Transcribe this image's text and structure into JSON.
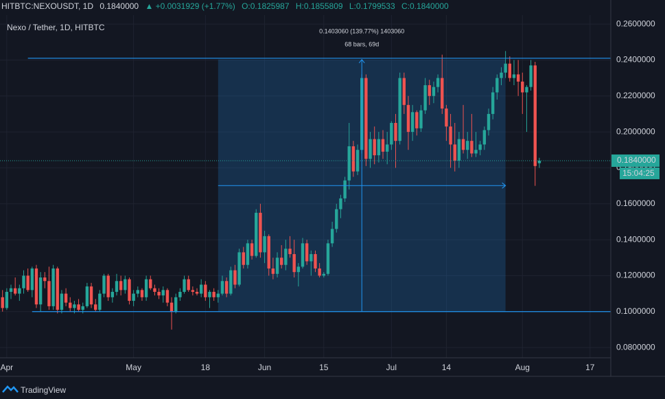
{
  "header": {
    "symbol": "HITBTC:NEXOUSDT, 1D",
    "last": "0.1840000",
    "change": "▲ +0.0031929 (+1.77%)",
    "o": "O:0.1825987",
    "h": "H:0.1855809",
    "l": "L:0.1799533",
    "c": "C:0.1840000"
  },
  "chart_data": {
    "type": "candlestick",
    "title": "Nexo / Tether, 1D, HITBTC",
    "up_color": "#26a69a",
    "down_color": "#ef5350",
    "xlim": [
      -1.6,
      142.9
    ],
    "ylim": [
      0.0743,
      0.265
    ],
    "xticks": [
      {
        "value": 0,
        "label": "Apr"
      },
      {
        "value": 30,
        "label": "May"
      },
      {
        "value": 47,
        "label": "18"
      },
      {
        "value": 61,
        "label": "Jun"
      },
      {
        "value": 75,
        "label": "15"
      },
      {
        "value": 91,
        "label": "Jul"
      },
      {
        "value": 104,
        "label": "14"
      },
      {
        "value": 122,
        "label": "Aug"
      },
      {
        "value": 138,
        "label": "17"
      }
    ],
    "yticks": [
      {
        "value": 0.08,
        "label": "0.0800000"
      },
      {
        "value": 0.1,
        "label": "0.1000000"
      },
      {
        "value": 0.12,
        "label": "0.1200000"
      },
      {
        "value": 0.14,
        "label": "0.1400000"
      },
      {
        "value": 0.16,
        "label": "0.1600000"
      },
      {
        "value": 0.18,
        "label": "0.1800000"
      },
      {
        "value": 0.2,
        "label": "0.2000000"
      },
      {
        "value": 0.22,
        "label": "0.2200000"
      },
      {
        "value": 0.24,
        "label": "0.2400000"
      },
      {
        "value": 0.26,
        "label": "0.2600000"
      }
    ],
    "x": [
      -1,
      0,
      1,
      2,
      3,
      4,
      5,
      6,
      7,
      8,
      9,
      10,
      11,
      12,
      13,
      14,
      15,
      16,
      17,
      18,
      19,
      20,
      21,
      22,
      23,
      24,
      25,
      26,
      27,
      28,
      29,
      30,
      31,
      32,
      33,
      34,
      35,
      36,
      37,
      38,
      39,
      40,
      41,
      42,
      43,
      44,
      45,
      46,
      47,
      48,
      49,
      50,
      51,
      52,
      53,
      54,
      55,
      56,
      57,
      58,
      59,
      60,
      61,
      62,
      63,
      64,
      65,
      66,
      67,
      68,
      69,
      70,
      71,
      72,
      73,
      74,
      75,
      76,
      77,
      78,
      79,
      80,
      81,
      82,
      83,
      84,
      85,
      86,
      87,
      88,
      89,
      90,
      91,
      92,
      93,
      94,
      95,
      96,
      97,
      98,
      99,
      100,
      101,
      102,
      103,
      104,
      105,
      106,
      107,
      108,
      109,
      110,
      111,
      112,
      113,
      114,
      115,
      116,
      117,
      118,
      119,
      120,
      121,
      122,
      123,
      124,
      125,
      126
    ],
    "ohlc": [
      [
        0.108,
        0.112,
        0.1,
        0.102
      ],
      [
        0.102,
        0.113,
        0.101,
        0.111
      ],
      [
        0.111,
        0.115,
        0.107,
        0.113
      ],
      [
        0.113,
        0.119,
        0.109,
        0.11
      ],
      [
        0.11,
        0.115,
        0.106,
        0.113
      ],
      [
        0.113,
        0.123,
        0.11,
        0.12
      ],
      [
        0.12,
        0.124,
        0.111,
        0.112
      ],
      [
        0.112,
        0.125,
        0.108,
        0.124
      ],
      [
        0.124,
        0.126,
        0.102,
        0.104
      ],
      [
        0.104,
        0.122,
        0.1,
        0.119
      ],
      [
        0.119,
        0.122,
        0.113,
        0.117
      ],
      [
        0.117,
        0.125,
        0.101,
        0.103
      ],
      [
        0.103,
        0.126,
        0.101,
        0.124
      ],
      [
        0.124,
        0.125,
        0.099,
        0.101
      ],
      [
        0.101,
        0.112,
        0.099,
        0.11
      ],
      [
        0.11,
        0.113,
        0.103,
        0.105
      ],
      [
        0.105,
        0.108,
        0.1,
        0.102
      ],
      [
        0.102,
        0.106,
        0.099,
        0.104
      ],
      [
        0.104,
        0.107,
        0.1,
        0.101
      ],
      [
        0.101,
        0.105,
        0.099,
        0.103
      ],
      [
        0.103,
        0.116,
        0.102,
        0.114
      ],
      [
        0.114,
        0.116,
        0.102,
        0.104
      ],
      [
        0.104,
        0.107,
        0.1,
        0.101
      ],
      [
        0.101,
        0.112,
        0.1,
        0.11
      ],
      [
        0.11,
        0.121,
        0.108,
        0.12
      ],
      [
        0.12,
        0.121,
        0.106,
        0.108
      ],
      [
        0.108,
        0.113,
        0.105,
        0.111
      ],
      [
        0.111,
        0.121,
        0.109,
        0.117
      ],
      [
        0.117,
        0.12,
        0.109,
        0.112
      ],
      [
        0.112,
        0.12,
        0.11,
        0.118
      ],
      [
        0.118,
        0.119,
        0.104,
        0.106
      ],
      [
        0.106,
        0.112,
        0.103,
        0.11
      ],
      [
        0.11,
        0.114,
        0.108,
        0.112
      ],
      [
        0.112,
        0.113,
        0.106,
        0.108
      ],
      [
        0.108,
        0.12,
        0.106,
        0.118
      ],
      [
        0.118,
        0.12,
        0.112,
        0.113
      ],
      [
        0.113,
        0.115,
        0.109,
        0.111
      ],
      [
        0.111,
        0.113,
        0.107,
        0.109
      ],
      [
        0.109,
        0.114,
        0.105,
        0.112
      ],
      [
        0.112,
        0.113,
        0.103,
        0.105
      ],
      [
        0.105,
        0.108,
        0.09,
        0.1
      ],
      [
        0.1,
        0.11,
        0.099,
        0.108
      ],
      [
        0.108,
        0.113,
        0.106,
        0.111
      ],
      [
        0.111,
        0.12,
        0.11,
        0.118
      ],
      [
        0.118,
        0.12,
        0.111,
        0.112
      ],
      [
        0.112,
        0.114,
        0.109,
        0.111
      ],
      [
        0.111,
        0.113,
        0.109,
        0.11
      ],
      [
        0.11,
        0.118,
        0.108,
        0.115
      ],
      [
        0.115,
        0.117,
        0.106,
        0.108
      ],
      [
        0.108,
        0.112,
        0.102,
        0.111
      ],
      [
        0.111,
        0.113,
        0.106,
        0.108
      ],
      [
        0.108,
        0.112,
        0.105,
        0.11
      ],
      [
        0.11,
        0.12,
        0.109,
        0.117
      ],
      [
        0.117,
        0.119,
        0.108,
        0.11
      ],
      [
        0.11,
        0.125,
        0.109,
        0.123
      ],
      [
        0.123,
        0.126,
        0.113,
        0.115
      ],
      [
        0.115,
        0.135,
        0.114,
        0.133
      ],
      [
        0.133,
        0.136,
        0.124,
        0.126
      ],
      [
        0.126,
        0.14,
        0.124,
        0.138
      ],
      [
        0.138,
        0.14,
        0.129,
        0.131
      ],
      [
        0.131,
        0.157,
        0.13,
        0.155
      ],
      [
        0.155,
        0.16,
        0.13,
        0.133
      ],
      [
        0.133,
        0.145,
        0.127,
        0.142
      ],
      [
        0.142,
        0.143,
        0.12,
        0.124
      ],
      [
        0.124,
        0.13,
        0.118,
        0.121
      ],
      [
        0.121,
        0.133,
        0.119,
        0.13
      ],
      [
        0.13,
        0.137,
        0.124,
        0.126
      ],
      [
        0.126,
        0.14,
        0.123,
        0.135
      ],
      [
        0.135,
        0.142,
        0.13,
        0.132
      ],
      [
        0.132,
        0.14,
        0.119,
        0.122
      ],
      [
        0.122,
        0.127,
        0.114,
        0.125
      ],
      [
        0.125,
        0.141,
        0.124,
        0.138
      ],
      [
        0.138,
        0.14,
        0.126,
        0.128
      ],
      [
        0.128,
        0.134,
        0.12,
        0.132
      ],
      [
        0.132,
        0.134,
        0.122,
        0.124
      ],
      [
        0.124,
        0.127,
        0.119,
        0.12
      ],
      [
        0.12,
        0.122,
        0.119,
        0.121
      ],
      [
        0.121,
        0.14,
        0.12,
        0.138
      ],
      [
        0.138,
        0.15,
        0.136,
        0.146
      ],
      [
        0.146,
        0.16,
        0.144,
        0.157
      ],
      [
        0.157,
        0.165,
        0.152,
        0.163
      ],
      [
        0.163,
        0.175,
        0.161,
        0.173
      ],
      [
        0.173,
        0.205,
        0.168,
        0.192
      ],
      [
        0.192,
        0.195,
        0.175,
        0.178
      ],
      [
        0.178,
        0.193,
        0.176,
        0.19
      ],
      [
        0.19,
        0.232,
        0.188,
        0.23
      ],
      [
        0.23,
        0.232,
        0.181,
        0.185
      ],
      [
        0.185,
        0.2,
        0.18,
        0.196
      ],
      [
        0.196,
        0.203,
        0.182,
        0.187
      ],
      [
        0.187,
        0.2,
        0.183,
        0.196
      ],
      [
        0.196,
        0.201,
        0.185,
        0.189
      ],
      [
        0.189,
        0.2,
        0.182,
        0.193
      ],
      [
        0.193,
        0.206,
        0.19,
        0.205
      ],
      [
        0.205,
        0.21,
        0.18,
        0.195
      ],
      [
        0.195,
        0.233,
        0.193,
        0.23
      ],
      [
        0.23,
        0.233,
        0.21,
        0.215
      ],
      [
        0.215,
        0.22,
        0.19,
        0.2
      ],
      [
        0.2,
        0.215,
        0.195,
        0.211
      ],
      [
        0.211,
        0.212,
        0.198,
        0.202
      ],
      [
        0.202,
        0.215,
        0.2,
        0.212
      ],
      [
        0.212,
        0.23,
        0.21,
        0.226
      ],
      [
        0.226,
        0.229,
        0.215,
        0.22
      ],
      [
        0.22,
        0.228,
        0.216,
        0.225
      ],
      [
        0.225,
        0.232,
        0.222,
        0.23
      ],
      [
        0.23,
        0.243,
        0.21,
        0.213
      ],
      [
        0.213,
        0.215,
        0.195,
        0.203
      ],
      [
        0.203,
        0.21,
        0.18,
        0.193
      ],
      [
        0.193,
        0.205,
        0.178,
        0.184
      ],
      [
        0.184,
        0.2,
        0.18,
        0.196
      ],
      [
        0.196,
        0.215,
        0.188,
        0.19
      ],
      [
        0.19,
        0.2,
        0.185,
        0.195
      ],
      [
        0.195,
        0.21,
        0.186,
        0.188
      ],
      [
        0.188,
        0.2,
        0.186,
        0.19
      ],
      [
        0.19,
        0.195,
        0.187,
        0.193
      ],
      [
        0.193,
        0.203,
        0.19,
        0.201
      ],
      [
        0.201,
        0.213,
        0.198,
        0.21
      ],
      [
        0.21,
        0.225,
        0.207,
        0.222
      ],
      [
        0.222,
        0.232,
        0.218,
        0.23
      ],
      [
        0.23,
        0.236,
        0.226,
        0.233
      ],
      [
        0.233,
        0.245,
        0.23,
        0.238
      ],
      [
        0.238,
        0.242,
        0.228,
        0.23
      ],
      [
        0.23,
        0.24,
        0.226,
        0.232
      ],
      [
        0.232,
        0.24,
        0.22,
        0.228
      ],
      [
        0.228,
        0.233,
        0.21,
        0.222
      ],
      [
        0.222,
        0.226,
        0.2,
        0.225
      ],
      [
        0.225,
        0.24,
        0.223,
        0.237
      ],
      [
        0.237,
        0.239,
        0.17,
        0.181
      ],
      [
        0.1826,
        0.1856,
        0.18,
        0.184
      ]
    ],
    "trend_lines": [
      {
        "y": 0.241,
        "x_start": 5
      },
      {
        "y": 0.1,
        "x_start": 6
      }
    ],
    "measure": {
      "from_x": 50,
      "to_x": 118,
      "from_y": 0.1,
      "to_y": 0.2403,
      "label": "0.1403060 (139.77%) 1403060",
      "bars_label": "68 bars, 69d"
    },
    "last_price": {
      "value": 0.184,
      "label": "0.1840000",
      "timer": "15:04:25"
    },
    "footer": "TradingView"
  }
}
